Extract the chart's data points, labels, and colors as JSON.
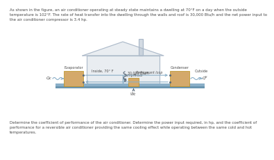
{
  "bg_color": "#ffffff",
  "text_color": "#4a4a4a",
  "title_text": "As shown in the figure, an air conditioner operating at steady state maintains a dwelling at 70°F on a day when the outside\ntemperature is 102°F. The rate of heat transfer into the dwelling through the walls and roof is 30,000 Btu/h and the net power input to\nthe air conditioner compressor is 3.4 hp.",
  "bottom_text": "Determine the coefficient of performance of the air conditioner. Determine the power input required, in hp, and the coefficient of\nperformance for a reversible air conditioner providing the same cooling effect while operating between the same cold and hot\ntemperatures.",
  "house_color": "#aab8c8",
  "box_color": "#d4a96a",
  "floor_color_top": "#8aafc8",
  "floor_color_bot": "#6a95b0",
  "pipe_color": "#8aafc8",
  "arrow_color": "#5a6a7a",
  "label_inside": "Inside, 70° F",
  "label_outside": "Outside",
  "label_evaporator": "Evaporator",
  "label_condenser": "Condenser",
  "label_compressor": "Compressor",
  "label_refrigerant": "Refrigerant loop",
  "label_heat_in": "30,000 Btu/h",
  "label_Qc": "Qᴄ",
  "label_Qh": "Qᴴ",
  "label_Wc": "Ẅᴄ"
}
